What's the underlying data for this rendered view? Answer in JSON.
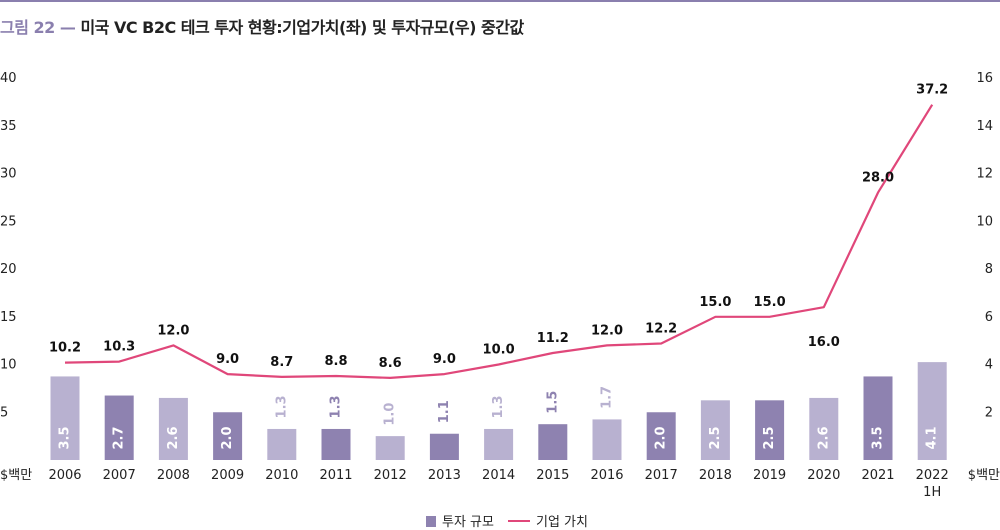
{
  "title": {
    "label": "그림 22",
    "dash": "—",
    "text": "미국 VC B2C 테크 투자 현황:기업가치(좌) 및 투자규모(우) 중간값"
  },
  "chart_data": {
    "type": "bar+line",
    "categories": [
      "2006",
      "2007",
      "2008",
      "2009",
      "2010",
      "2011",
      "2012",
      "2013",
      "2014",
      "2015",
      "2016",
      "2017",
      "2018",
      "2019",
      "2020",
      "2021",
      "2022\n1H"
    ],
    "series": [
      {
        "name": "투자 규모",
        "type": "bar",
        "axis": "right",
        "values": [
          3.5,
          2.7,
          2.6,
          2.0,
          1.3,
          1.3,
          1.0,
          1.1,
          1.3,
          1.5,
          1.7,
          2.0,
          2.5,
          2.5,
          2.6,
          3.5,
          4.1
        ],
        "bar_colors": [
          "#b8b1d0",
          "#8e82b0",
          "#b8b1d0",
          "#8e82b0",
          "#b8b1d0",
          "#8e82b0",
          "#b8b1d0",
          "#8e82b0",
          "#b8b1d0",
          "#8e82b0",
          "#b8b1d0",
          "#8e82b0",
          "#b8b1d0",
          "#8e82b0",
          "#b8b1d0",
          "#8e82b0",
          "#b8b1d0"
        ],
        "label_colors": [
          "#ffffff",
          "#ffffff",
          "#ffffff",
          "#ffffff",
          "#b8b1d0",
          "#8e82b0",
          "#b8b1d0",
          "#8e82b0",
          "#b8b1d0",
          "#8e82b0",
          "#b8b1d0",
          "#ffffff",
          "#ffffff",
          "#ffffff",
          "#ffffff",
          "#ffffff",
          "#ffffff"
        ]
      },
      {
        "name": "기업 가치",
        "type": "line",
        "axis": "left",
        "color": "#e0477a",
        "values": [
          10.2,
          10.3,
          12.0,
          9.0,
          8.7,
          8.8,
          8.6,
          9.0,
          10.0,
          11.2,
          12.0,
          12.2,
          15.0,
          15.0,
          16.0,
          28.0,
          37.2
        ]
      }
    ],
    "left_axis": {
      "min": 0,
      "max": 40,
      "ticks": [
        "5",
        "10",
        "15",
        "20",
        "25",
        "30",
        "35",
        "40"
      ],
      "unit": "$백만"
    },
    "right_axis": {
      "min": 0,
      "max": 16,
      "ticks": [
        "2",
        "4",
        "6",
        "8",
        "10",
        "12",
        "14",
        "16"
      ],
      "unit": "$백만"
    },
    "grid": false,
    "legend_position": "bottom"
  },
  "colors": {
    "line": "#e0477a",
    "bar_light": "#b8b1d0",
    "bar_dark": "#8e82b0",
    "legend_bar": "#8e82b0",
    "title_label": "#8a7fae"
  }
}
